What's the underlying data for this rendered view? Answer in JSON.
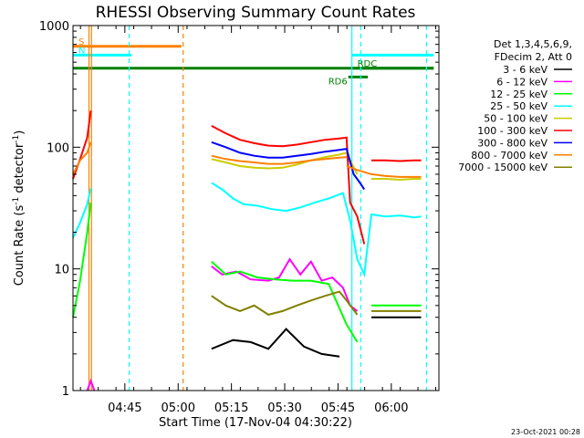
{
  "chart_data": {
    "type": "line",
    "title": "RHESSI Observing Summary Count Rates",
    "xlabel": "Start Time (17-Nov-04 04:30:22)",
    "ylabel": "Count Rate (s⁻¹ detector⁻¹)",
    "ylabel_parts": [
      "Count Rate (s",
      "-1",
      " detector",
      "-1",
      ")"
    ],
    "x_unit": "minutes after 04:30:22",
    "xlim": [
      0,
      103
    ],
    "ylim": [
      1,
      1000
    ],
    "yscale": "log",
    "x_ticks": [
      {
        "value": 14.6,
        "label": "04:45"
      },
      {
        "value": 29.6,
        "label": "05:00"
      },
      {
        "value": 44.6,
        "label": "05:15"
      },
      {
        "value": 59.6,
        "label": "05:30"
      },
      {
        "value": 74.6,
        "label": "05:45"
      },
      {
        "value": 89.6,
        "label": "06:00"
      }
    ],
    "y_ticks": [
      {
        "value": 1,
        "label": "1"
      },
      {
        "value": 10,
        "label": "10"
      },
      {
        "value": 100,
        "label": "100"
      },
      {
        "value": 1000,
        "label": "1000"
      }
    ],
    "legend": {
      "placement": "right",
      "header": [
        "Det 1,3,4,5,6,9,",
        "FDecim 2, Att 0"
      ]
    },
    "series": [
      {
        "name": "3 - 6 keV",
        "color": "#000000",
        "segments": [
          {
            "x": [
              39,
              45,
              50,
              55,
              60,
              65,
              70,
              75
            ],
            "y": [
              2.2,
              2.6,
              2.5,
              2.2,
              3.2,
              2.3,
              2.0,
              1.9
            ]
          },
          {
            "x": [
              84,
              88,
              92,
              95,
              98
            ],
            "y": [
              4.0,
              4.0,
              4.0,
              4.0,
              4.0
            ]
          }
        ]
      },
      {
        "name": "6 - 12 keV",
        "color": "#ff00ff",
        "segments": [
          {
            "x": [
              4,
              5,
              6
            ],
            "y": [
              1.0,
              1.2,
              1.0
            ]
          },
          {
            "x": [
              39,
              42,
              46,
              50,
              55,
              58,
              61,
              64,
              67,
              70,
              73,
              76,
              78,
              80
            ],
            "y": [
              10.5,
              9.0,
              9.5,
              8.2,
              8.0,
              8.5,
              12.0,
              9.0,
              11.5,
              8.0,
              8.5,
              7.0,
              5.0,
              4.5
            ]
          }
        ]
      },
      {
        "name": "12 - 25 keV",
        "color": "#00ff00",
        "segments": [
          {
            "x": [
              0,
              2,
              4,
              5
            ],
            "y": [
              4.0,
              8.0,
              20.0,
              35.0
            ]
          },
          {
            "x": [
              39,
              43,
              47,
              52,
              57,
              62,
              67,
              72,
              77,
              80
            ],
            "y": [
              11.5,
              9.0,
              9.5,
              8.5,
              8.2,
              8.0,
              8.0,
              7.5,
              3.5,
              2.5
            ]
          },
          {
            "x": [
              84,
              88,
              92,
              95,
              98
            ],
            "y": [
              5.0,
              5.0,
              5.0,
              5.0,
              5.0
            ]
          }
        ]
      },
      {
        "name": "25 - 50 keV",
        "color": "#00ffff",
        "segments": [
          {
            "x": [
              0,
              2,
              4,
              5
            ],
            "y": [
              18.0,
              24.0,
              34.0,
              46.0
            ]
          },
          {
            "x": [
              39,
              42,
              45,
              48,
              52,
              56,
              60,
              64,
              68,
              72,
              76,
              78,
              80,
              82,
              84,
              88,
              92,
              96,
              98
            ],
            "y": [
              51.0,
              45.0,
              38.0,
              34.0,
              33.0,
              31.0,
              30.0,
              32.0,
              35.0,
              38.0,
              42.0,
              25.0,
              12.0,
              9.0,
              28.0,
              27.0,
              27.5,
              26.5,
              27.0
            ]
          }
        ]
      },
      {
        "name": "50 - 100 keV",
        "color": "#cccc00",
        "segments": [
          {
            "x": [
              39,
              43,
              47,
              51,
              55,
              59,
              63,
              67,
              71,
              75,
              77,
              80
            ],
            "y": [
              80.0,
              75.0,
              70.0,
              68.0,
              67.0,
              68.0,
              72.0,
              78.0,
              83.0,
              87.0,
              90.0,
              60.0
            ]
          },
          {
            "x": [
              84,
              88,
              92,
              96,
              98
            ],
            "y": [
              55.0,
              55.0,
              54.0,
              55.0,
              55.0
            ]
          }
        ]
      },
      {
        "name": "100 - 300 keV",
        "color": "#ff0000",
        "segments": [
          {
            "x": [
              0,
              2,
              4,
              5
            ],
            "y": [
              55.0,
              80.0,
              120.0,
              200.0
            ]
          },
          {
            "x": [
              39,
              43,
              47,
              51,
              55,
              59,
              63,
              67,
              71,
              75,
              77,
              78,
              80,
              82
            ],
            "y": [
              150.0,
              130.0,
              115.0,
              108.0,
              103.0,
              102.0,
              105.0,
              110.0,
              115.0,
              118.0,
              120.0,
              35.0,
              27.0,
              16.0
            ]
          },
          {
            "x": [
              84,
              88,
              92,
              96,
              98
            ],
            "y": [
              78.0,
              78.0,
              77.0,
              78.0,
              78.0
            ]
          }
        ]
      },
      {
        "name": "300 - 800 keV",
        "color": "#0000ff",
        "segments": [
          {
            "x": [
              39,
              43,
              47,
              51,
              55,
              59,
              63,
              67,
              71,
              75,
              77,
              79,
              81,
              82
            ],
            "y": [
              110.0,
              100.0,
              90.0,
              85.0,
              82.0,
              82.0,
              85.0,
              88.0,
              92.0,
              95.0,
              97.0,
              60.0,
              50.0,
              45.0
            ]
          }
        ]
      },
      {
        "name": "800 - 7000 keV",
        "color": "#ff8000",
        "segments": [
          {
            "x": [
              0,
              2,
              4,
              5
            ],
            "y": [
              60.0,
              78.0,
              90.0,
              110.0
            ]
          },
          {
            "x": [
              39,
              43,
              47,
              51,
              55,
              59,
              63,
              67,
              71,
              75,
              77
            ],
            "y": [
              85.0,
              80.0,
              77.0,
              75.0,
              73.0,
              73.0,
              75.0,
              78.0,
              80.0,
              82.0,
              83.0
            ]
          },
          {
            "x": [
              77,
              80,
              84,
              88,
              92,
              96,
              98
            ],
            "y": [
              70.0,
              65.0,
              60.0,
              58.0,
              57.0,
              57.0,
              57.0
            ]
          }
        ]
      },
      {
        "name": "7000 - 15000 keV",
        "color": "#808000",
        "segments": [
          {
            "x": [
              39,
              43,
              47,
              51,
              55,
              59,
              63,
              67,
              71,
              75,
              77,
              80
            ],
            "y": [
              6.0,
              5.0,
              4.5,
              5.0,
              4.2,
              4.5,
              5.0,
              5.5,
              6.0,
              6.5,
              5.5,
              4.2
            ]
          },
          {
            "x": [
              84,
              88,
              92,
              96,
              98
            ],
            "y": [
              4.5,
              4.5,
              4.5,
              4.5,
              4.5
            ]
          }
        ]
      }
    ],
    "bars": [
      {
        "label": "S",
        "color": "#ff8000",
        "x0": 0,
        "x1": 30.5,
        "yfrac": 0.057
      },
      {
        "label": "N",
        "color": "#00ffff",
        "x0": 0,
        "x1": 16.5,
        "yfrac": 0.081
      },
      {
        "label": "",
        "color": "#00ffff",
        "x0": 78.5,
        "x1": 101.5,
        "yfrac": 0.081
      },
      {
        "label": "",
        "color": "#008000",
        "x0": 0,
        "x1": 101.5,
        "yfrac": 0.117
      },
      {
        "label": "RDC",
        "color": "#008000",
        "x0": 78.5,
        "x1": 101.5,
        "yfrac": 0.117
      },
      {
        "label": "RD6",
        "color": "#008000",
        "x0": 77.5,
        "x1": 83,
        "yfrac": 0.141
      }
    ],
    "vlines": [
      {
        "x": 4.5,
        "color": "#ff8000",
        "style": "solid"
      },
      {
        "x": 5.2,
        "color": "#ff8000",
        "style": "solid"
      },
      {
        "x": 15.8,
        "color": "#00ffff",
        "style": "dashed"
      },
      {
        "x": 31.0,
        "color": "#ff8000",
        "style": "dashed"
      },
      {
        "x": 78.5,
        "color": "#00ffff",
        "style": "solid"
      },
      {
        "x": 81.0,
        "color": "#00ffff",
        "style": "dashed"
      },
      {
        "x": 99.5,
        "color": "#00ffff",
        "style": "dashed"
      }
    ],
    "footer_date": "23-Oct-2021 00:28"
  }
}
